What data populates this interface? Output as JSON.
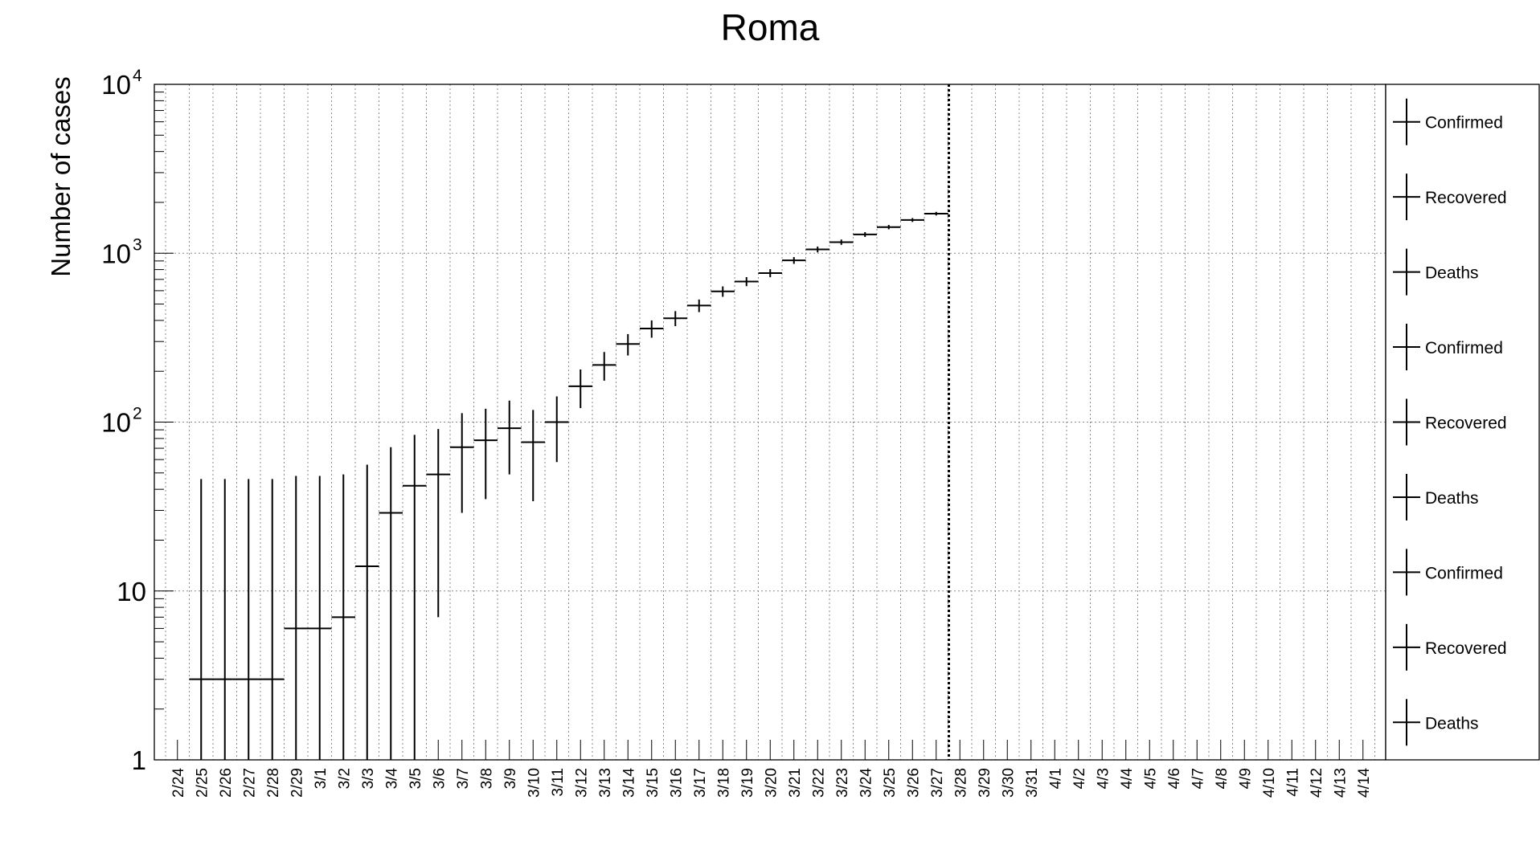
{
  "chart_data": {
    "type": "scatter",
    "title": "Roma",
    "ylabel": "Number of cases",
    "xlabel": "",
    "yscale": "log",
    "ylim": [
      1,
      10000
    ],
    "ytick_labels": [
      {
        "value": 1,
        "base": "1",
        "exp": ""
      },
      {
        "value": 10,
        "base": "10",
        "exp": ""
      },
      {
        "value": 100,
        "base": "10",
        "exp": "2"
      },
      {
        "value": 1000,
        "base": "10",
        "exp": "3"
      },
      {
        "value": 10000,
        "base": "10",
        "exp": "4"
      }
    ],
    "categories": [
      "2/24",
      "2/25",
      "2/26",
      "2/27",
      "2/28",
      "2/29",
      "3/1",
      "3/2",
      "3/3",
      "3/4",
      "3/5",
      "3/6",
      "3/7",
      "3/8",
      "3/9",
      "3/10",
      "3/11",
      "3/12",
      "3/13",
      "3/14",
      "3/15",
      "3/16",
      "3/17",
      "3/18",
      "3/19",
      "3/20",
      "3/21",
      "3/22",
      "3/23",
      "3/24",
      "3/25",
      "3/26",
      "3/27",
      "3/28",
      "3/29",
      "3/30",
      "3/31",
      "4/1",
      "4/2",
      "4/3",
      "4/4",
      "4/5",
      "4/6",
      "4/7",
      "4/8",
      "4/9",
      "4/10",
      "4/11",
      "4/12",
      "4/13",
      "4/14"
    ],
    "grid": true,
    "vertical_marker": "3/27",
    "legend": {
      "placement": "right",
      "entries": [
        "Confirmed",
        "Recovered",
        "Deaths",
        "Confirmed",
        "Recovered",
        "Deaths",
        "Confirmed",
        "Recovered",
        "Deaths"
      ]
    },
    "series": [
      {
        "name": "Confirmed",
        "points": [
          {
            "x": "2/25",
            "y": 3,
            "ylow": 0,
            "yhigh": 46
          },
          {
            "x": "2/26",
            "y": 3,
            "ylow": 0,
            "yhigh": 46
          },
          {
            "x": "2/27",
            "y": 3,
            "ylow": 0,
            "yhigh": 46
          },
          {
            "x": "2/28",
            "y": 3,
            "ylow": 0,
            "yhigh": 46
          },
          {
            "x": "2/29",
            "y": 6,
            "ylow": 0,
            "yhigh": 48
          },
          {
            "x": "3/1",
            "y": 6,
            "ylow": 0,
            "yhigh": 48
          },
          {
            "x": "3/2",
            "y": 7,
            "ylow": 0,
            "yhigh": 49
          },
          {
            "x": "3/3",
            "y": 14,
            "ylow": 0,
            "yhigh": 56
          },
          {
            "x": "3/4",
            "y": 29,
            "ylow": 0,
            "yhigh": 71
          },
          {
            "x": "3/5",
            "y": 42,
            "ylow": 0,
            "yhigh": 84
          },
          {
            "x": "3/6",
            "y": 49,
            "ylow": 7,
            "yhigh": 91
          },
          {
            "x": "3/7",
            "y": 71,
            "ylow": 29,
            "yhigh": 113
          },
          {
            "x": "3/8",
            "y": 78,
            "ylow": 35,
            "yhigh": 120
          },
          {
            "x": "3/9",
            "y": 92,
            "ylow": 49,
            "yhigh": 134
          },
          {
            "x": "3/10",
            "y": 76,
            "ylow": 34,
            "yhigh": 118
          },
          {
            "x": "3/11",
            "y": 100,
            "ylow": 58,
            "yhigh": 142
          },
          {
            "x": "3/12",
            "y": 163,
            "ylow": 121,
            "yhigh": 205
          },
          {
            "x": "3/13",
            "y": 218,
            "ylow": 176,
            "yhigh": 260
          },
          {
            "x": "3/14",
            "y": 290,
            "ylow": 248,
            "yhigh": 332
          },
          {
            "x": "3/15",
            "y": 358,
            "ylow": 316,
            "yhigh": 400
          },
          {
            "x": "3/16",
            "y": 412,
            "ylow": 370,
            "yhigh": 454
          },
          {
            "x": "3/17",
            "y": 490,
            "ylow": 448,
            "yhigh": 532
          },
          {
            "x": "3/18",
            "y": 594,
            "ylow": 552,
            "yhigh": 636
          },
          {
            "x": "3/19",
            "y": 680,
            "ylow": 638,
            "yhigh": 722
          },
          {
            "x": "3/20",
            "y": 763,
            "ylow": 721,
            "yhigh": 805
          },
          {
            "x": "3/21",
            "y": 907,
            "ylow": 865,
            "yhigh": 949
          },
          {
            "x": "3/22",
            "y": 1053,
            "ylow": 1011,
            "yhigh": 1095
          },
          {
            "x": "3/23",
            "y": 1163,
            "ylow": 1121,
            "yhigh": 1205
          },
          {
            "x": "3/24",
            "y": 1291,
            "ylow": 1249,
            "yhigh": 1333
          },
          {
            "x": "3/25",
            "y": 1428,
            "ylow": 1386,
            "yhigh": 1470
          },
          {
            "x": "3/26",
            "y": 1573,
            "ylow": 1531,
            "yhigh": 1615
          },
          {
            "x": "3/27",
            "y": 1715,
            "ylow": 1673,
            "yhigh": 1757
          }
        ]
      }
    ]
  }
}
